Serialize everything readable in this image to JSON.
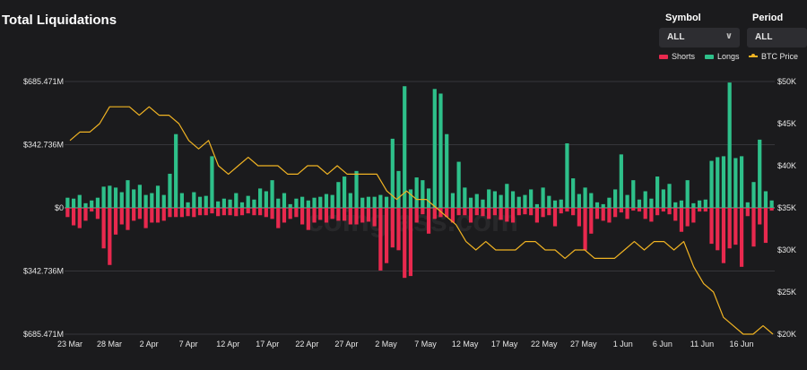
{
  "header": {
    "title": "Total Liquidations"
  },
  "filters": {
    "symbol": {
      "label": "Symbol",
      "value": "ALL"
    },
    "period": {
      "label": "Period",
      "value": "ALL"
    }
  },
  "legend": {
    "shorts": "Shorts",
    "longs": "Longs",
    "price": "BTC Price"
  },
  "watermark": "coinglass.com",
  "colors": {
    "shorts": "#e8294e",
    "longs": "#2ec08a",
    "price": "#f0b323",
    "grid": "#36363a"
  },
  "chart_data": {
    "type": "bar",
    "title": "Total Liquidations",
    "y_left": {
      "min": -685.471,
      "max": 685.471,
      "ticks": [
        "$685.471M",
        "$342.736M",
        "$0",
        "$342.736M",
        "$685.471M"
      ]
    },
    "y_right": {
      "min": 20,
      "max": 50,
      "ticks": [
        "$50K",
        "$45K",
        "$40K",
        "$35K",
        "$30K",
        "$25K",
        "$20K"
      ]
    },
    "x_ticks": [
      "23 Mar",
      "28 Mar",
      "2 Apr",
      "7 Apr",
      "12 Apr",
      "17 Apr",
      "22 Apr",
      "27 Apr",
      "2 May",
      "7 May",
      "12 May",
      "17 May",
      "22 May",
      "27 May",
      "1 Jun",
      "6 Jun",
      "11 Jun",
      "16 Jun"
    ],
    "series": [
      {
        "name": "Longs",
        "values": [
          55,
          50,
          70,
          25,
          40,
          55,
          115,
          120,
          110,
          85,
          150,
          100,
          125,
          70,
          80,
          120,
          70,
          185,
          400,
          80,
          30,
          85,
          60,
          65,
          280,
          35,
          50,
          45,
          80,
          30,
          65,
          45,
          105,
          90,
          150,
          50,
          80,
          20,
          50,
          60,
          40,
          55,
          60,
          75,
          70,
          140,
          170,
          80,
          200,
          55,
          60,
          60,
          70,
          60,
          375,
          200,
          660,
          100,
          165,
          150,
          105,
          645,
          620,
          400,
          80,
          250,
          110,
          55,
          75,
          45,
          100,
          90,
          70,
          130,
          90,
          60,
          70,
          100,
          20,
          110,
          65,
          40,
          45,
          350,
          160,
          75,
          110,
          80,
          30,
          20,
          55,
          100,
          290,
          70,
          150,
          45,
          90,
          50,
          170,
          100,
          130,
          30,
          40,
          150,
          25,
          40,
          45,
          255,
          275,
          280,
          680,
          270,
          280,
          30,
          140,
          370,
          90,
          40
        ]
      },
      {
        "name": "Shorts",
        "values": [
          50,
          95,
          110,
          70,
          20,
          60,
          220,
          310,
          145,
          90,
          120,
          70,
          60,
          110,
          80,
          80,
          70,
          50,
          50,
          50,
          45,
          50,
          40,
          40,
          30,
          45,
          40,
          40,
          45,
          40,
          30,
          40,
          40,
          50,
          60,
          110,
          80,
          60,
          50,
          90,
          120,
          80,
          65,
          80,
          60,
          70,
          70,
          90,
          90,
          80,
          75,
          100,
          340,
          300,
          215,
          230,
          380,
          370,
          80,
          35,
          140,
          60,
          50,
          50,
          80,
          40,
          40,
          80,
          40,
          45,
          60,
          40,
          65,
          75,
          80,
          40,
          35,
          40,
          80,
          50,
          40,
          100,
          30,
          20,
          40,
          100,
          230,
          140,
          60,
          70,
          80,
          50,
          25,
          60,
          15,
          20,
          60,
          75,
          40,
          20,
          35,
          70,
          130,
          100,
          80,
          20,
          20,
          195,
          230,
          300,
          220,
          200,
          320,
          45,
          210,
          90,
          190,
          15
        ]
      },
      {
        "name": "BTC Price",
        "values": [
          43,
          44,
          44,
          45,
          47,
          47,
          47,
          46,
          47,
          46,
          46,
          45,
          43,
          42,
          43,
          40,
          39,
          40,
          41,
          40,
          40,
          40,
          39,
          39,
          40,
          40,
          39,
          40,
          39,
          39,
          39,
          39,
          37,
          36,
          37,
          36,
          36,
          35,
          34,
          33,
          31,
          30,
          31,
          30,
          30,
          30,
          31,
          31,
          30,
          30,
          29,
          30,
          30,
          29,
          29,
          29,
          30,
          31,
          30,
          31,
          31,
          30,
          31,
          28,
          26,
          25,
          22,
          21,
          20,
          20,
          21,
          20
        ]
      }
    ]
  }
}
